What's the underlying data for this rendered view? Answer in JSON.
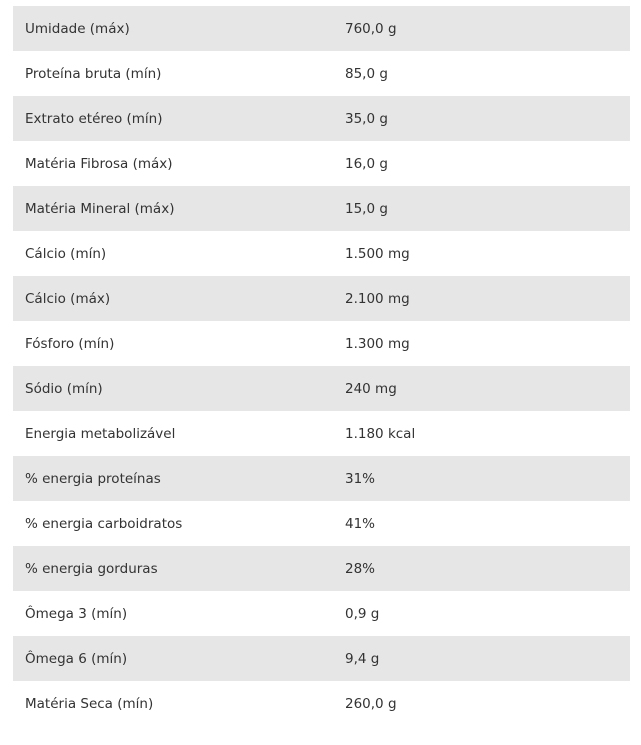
{
  "table": {
    "rows": [
      {
        "name": "Umidade (máx)",
        "value": "760,0 g"
      },
      {
        "name": "Proteína bruta (mín)",
        "value": "85,0 g"
      },
      {
        "name": "Extrato etéreo (mín)",
        "value": "35,0 g"
      },
      {
        "name": "Matéria Fibrosa (máx)",
        "value": "16,0 g"
      },
      {
        "name": "Matéria Mineral (máx)",
        "value": "15,0 g"
      },
      {
        "name": "Cálcio (mín)",
        "value": "1.500 mg"
      },
      {
        "name": "Cálcio (máx)",
        "value": "2.100 mg"
      },
      {
        "name": "Fósforo (mín)",
        "value": "1.300 mg"
      },
      {
        "name": "Sódio (mín)",
        "value": "240 mg"
      },
      {
        "name": "Energia metabolizável",
        "value": "1.180 kcal"
      },
      {
        "name": "% energia proteínas",
        "value": "31%"
      },
      {
        "name": "% energia carboidratos",
        "value": "41%"
      },
      {
        "name": "% energia gorduras",
        "value": "28%"
      },
      {
        "name": "Ômega 3 (mín)",
        "value": "0,9 g"
      },
      {
        "name": "Ômega 6 (mín)",
        "value": "9,4 g"
      },
      {
        "name": "Matéria Seca (mín)",
        "value": "260,0 g"
      }
    ],
    "colors": {
      "stripe": "#e6e6e6",
      "background": "#ffffff",
      "text": "#333333"
    }
  }
}
